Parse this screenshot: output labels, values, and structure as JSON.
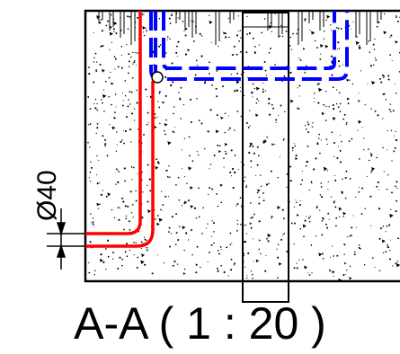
{
  "drawing": {
    "section_title": "A-A ( 1 : 20 )",
    "dimension_label": "Ø40",
    "colors": {
      "outline": "#000000",
      "supply_pipe": "#ff0000",
      "return_pipe": "#0000ff",
      "hatch": "#000000",
      "background": "#ffffff"
    },
    "elements": [
      "concrete-slab",
      "embedded-column",
      "red-pipe",
      "blue-dashed-pipe",
      "dimension-arrow",
      "section-title"
    ]
  }
}
